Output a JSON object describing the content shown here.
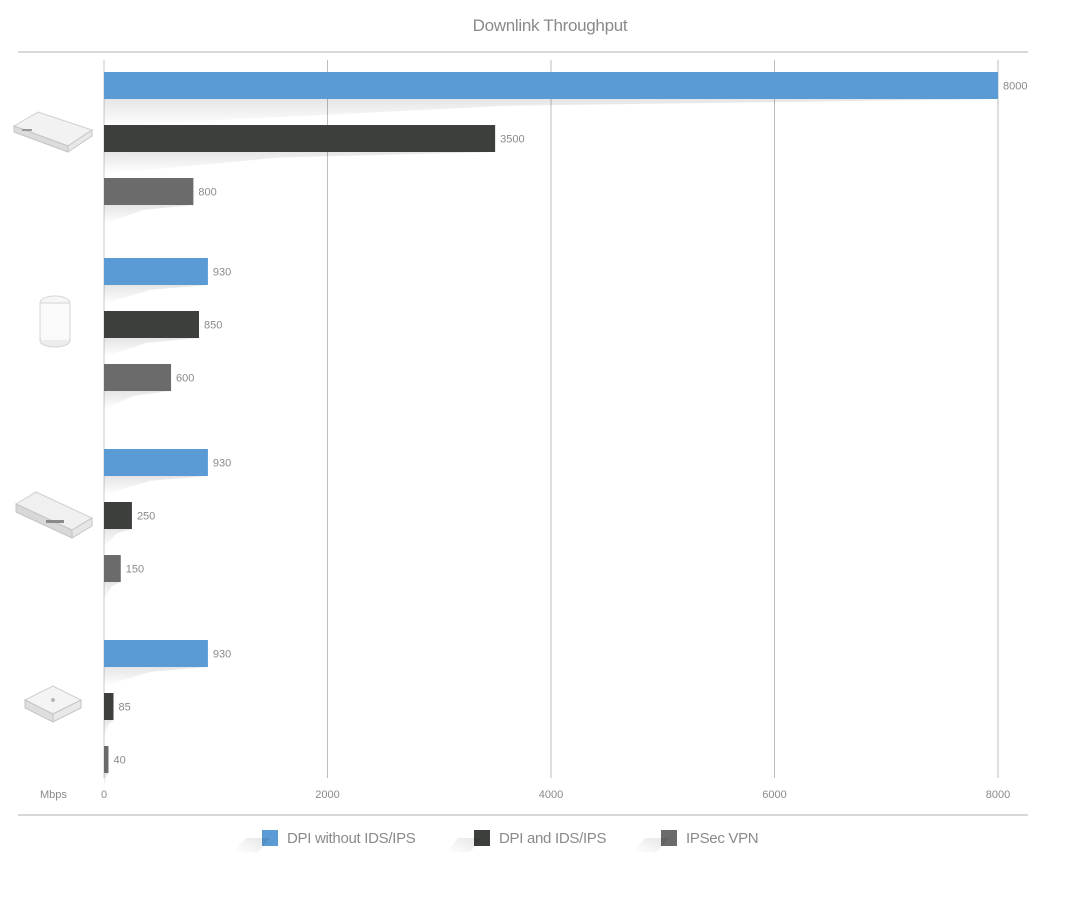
{
  "chart_data": {
    "type": "bar",
    "orientation": "horizontal",
    "title": "Downlink Throughput",
    "xlabel": "Mbps",
    "ylabel": "",
    "xlim": [
      0,
      8000
    ],
    "x_ticks": [
      "0",
      "2000",
      "4000",
      "6000",
      "8000"
    ],
    "grid": true,
    "legend_position": "bottom",
    "categories": [
      "device-1",
      "device-2",
      "device-3",
      "device-4"
    ],
    "series": [
      {
        "name": "DPI without IDS/IPS",
        "color": "#5b9bd5",
        "values": [
          8000,
          930,
          930,
          930
        ]
      },
      {
        "name": "DPI and IDS/IPS",
        "color": "#3d3f3d",
        "values": [
          3500,
          850,
          250,
          85
        ]
      },
      {
        "name": "IPSec VPN",
        "color": "#6b6b6b",
        "values": [
          800,
          600,
          150,
          40
        ]
      }
    ],
    "data_labels": [
      [
        "8000",
        "930",
        "930",
        "930"
      ],
      [
        "3500",
        "850",
        "250",
        "85"
      ],
      [
        "800",
        "600",
        "150",
        "40"
      ]
    ]
  }
}
